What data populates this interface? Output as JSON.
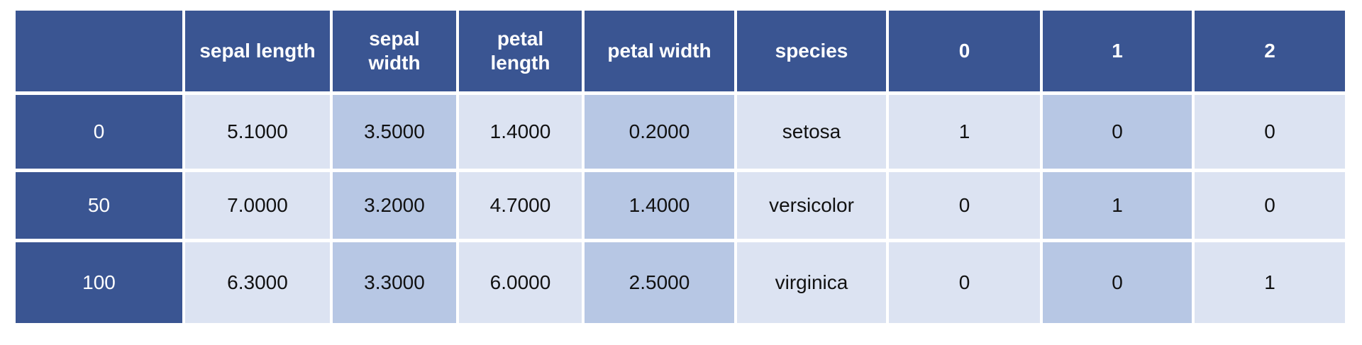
{
  "table": {
    "columns": [
      "sepal length",
      "sepal width",
      "petal length",
      "petal width",
      "species",
      "0",
      "1",
      "2"
    ],
    "rows": [
      {
        "index": "0",
        "cells": [
          "5.1000",
          "3.5000",
          "1.4000",
          "0.2000",
          "setosa",
          "1",
          "0",
          "0"
        ]
      },
      {
        "index": "50",
        "cells": [
          "7.0000",
          "3.2000",
          "4.7000",
          "1.4000",
          "versicolor",
          "0",
          "1",
          "0"
        ]
      },
      {
        "index": "100",
        "cells": [
          "6.3000",
          "3.3000",
          "6.0000",
          "2.5000",
          "virginica",
          "0",
          "0",
          "1"
        ]
      }
    ]
  }
}
